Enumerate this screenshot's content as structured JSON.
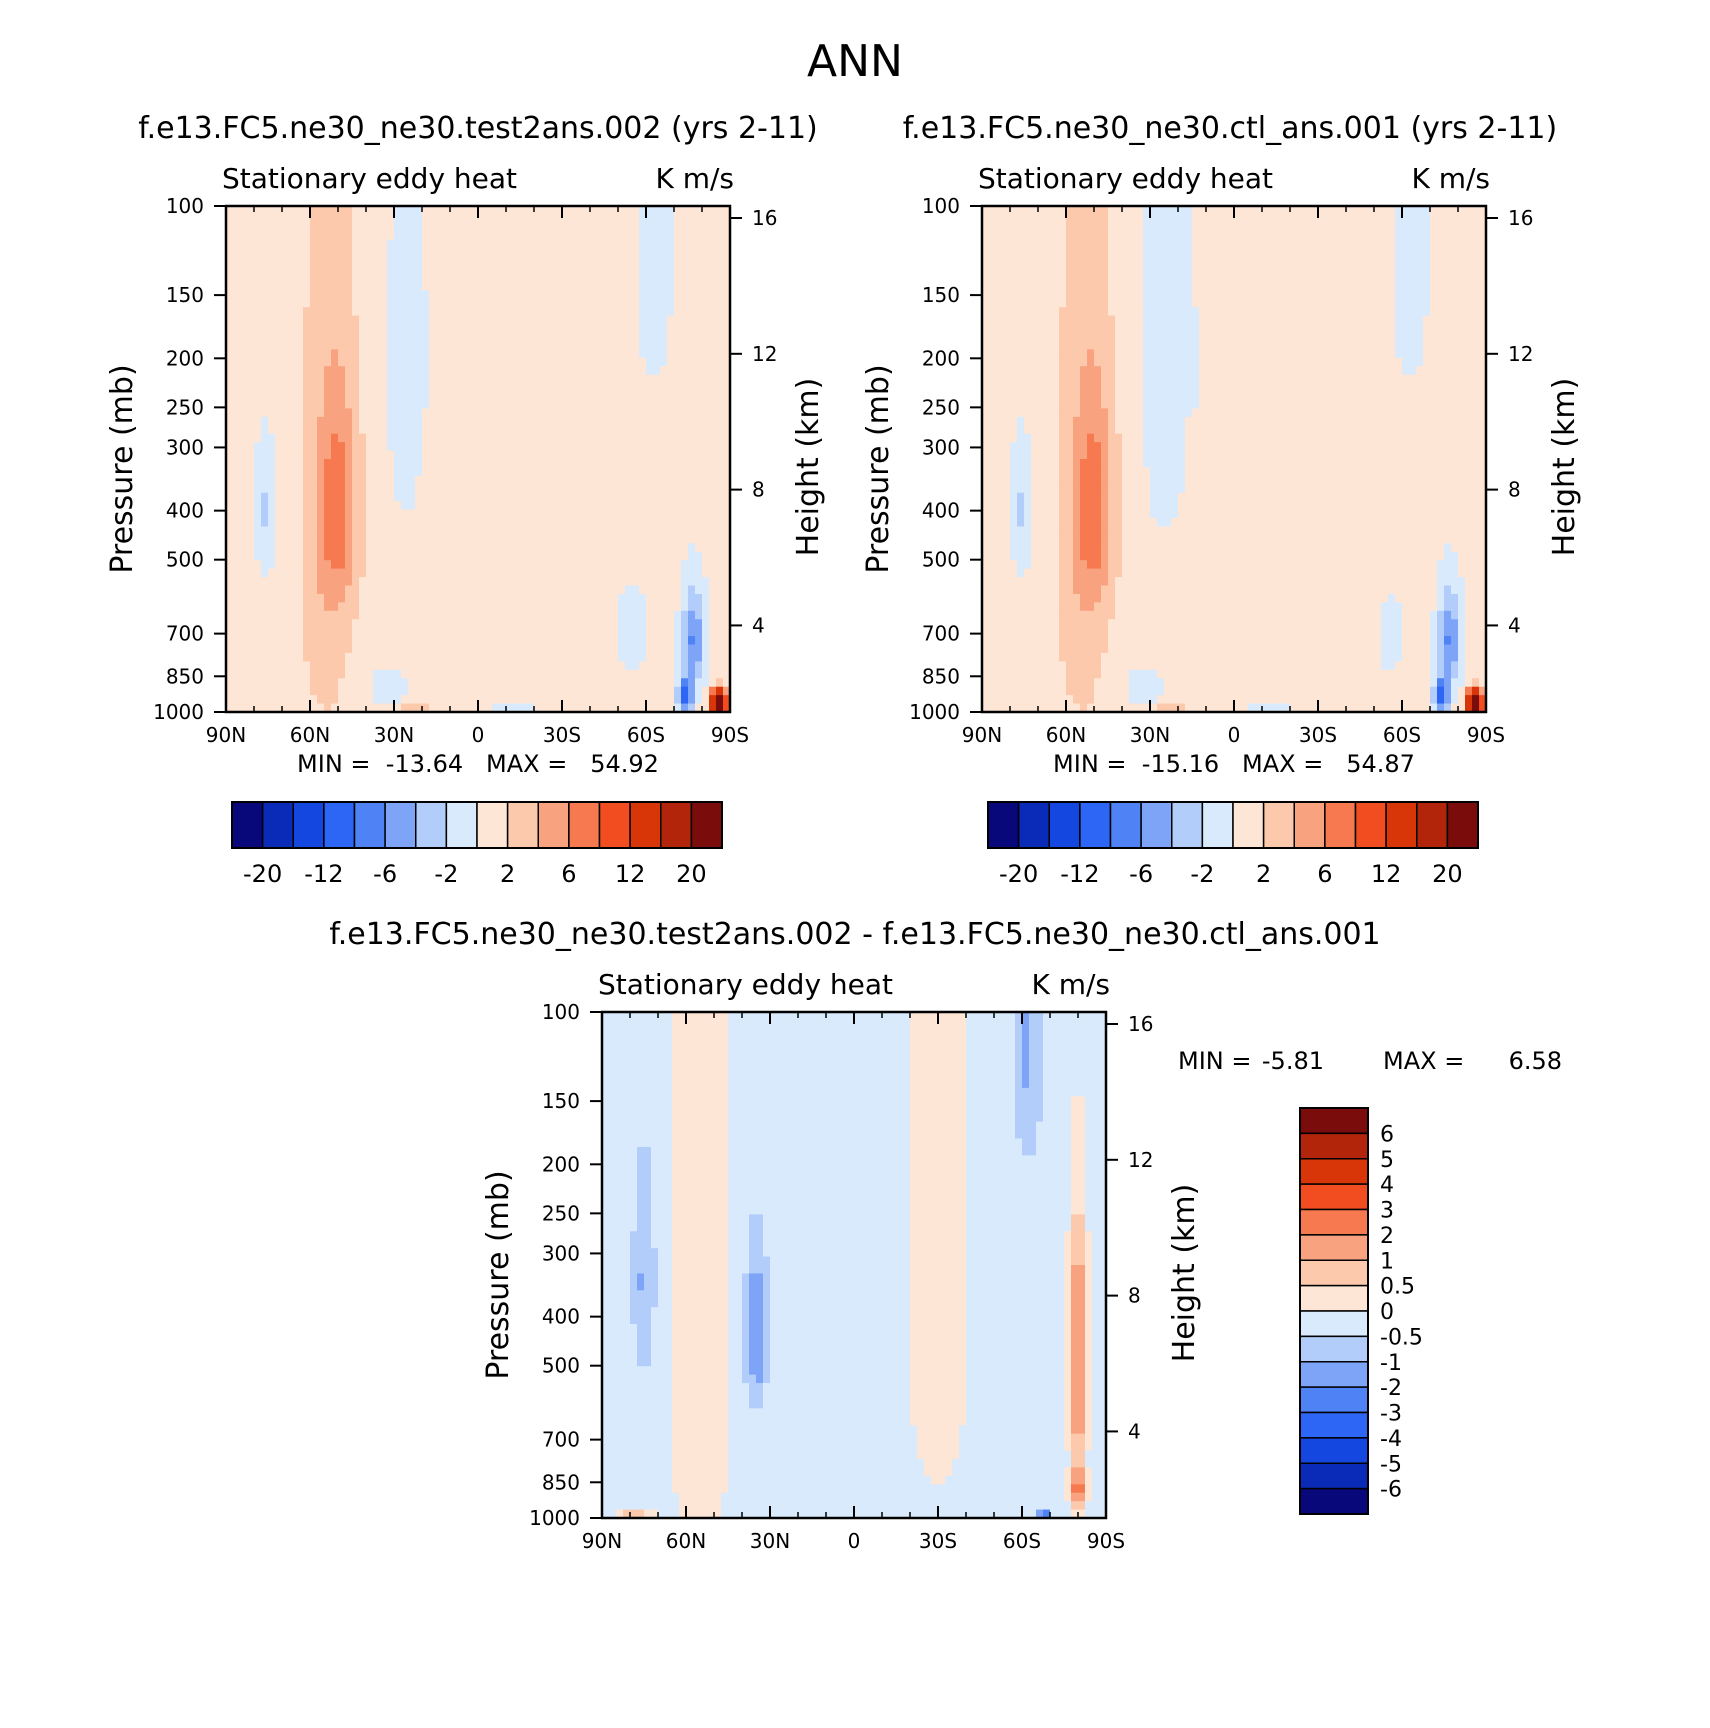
{
  "season": "ANN",
  "chart_data": [
    {
      "type": "heatmap",
      "title": "f.e13.FC5.ne30_ne30.test2ans.002 (yrs 2-11)",
      "subtitle_left": "Stationary eddy heat",
      "subtitle_right": "K m/s",
      "ylabel": "Pressure (mb)",
      "y2label": "Height (km)",
      "xlim": [
        90,
        -90
      ],
      "x_ticks": [
        90,
        60,
        30,
        0,
        -30,
        -60,
        -90
      ],
      "x_tick_labels": [
        "90N",
        "60N",
        "30N",
        "0",
        "30S",
        "60S",
        "90S"
      ],
      "ylim": [
        1000,
        100
      ],
      "y_ticks": [
        100,
        150,
        200,
        250,
        300,
        400,
        500,
        700,
        850,
        1000
      ],
      "y_tick_labels": [
        "100",
        "150",
        "200",
        "250",
        "300",
        "400",
        "500",
        "700",
        "850",
        "1000"
      ],
      "y2_ticks": [
        4,
        8,
        12,
        16
      ],
      "y2_tick_labels": [
        "4",
        "8",
        "12",
        "16"
      ],
      "stats_text": "MIN =  -13.64   MAX =   54.92",
      "min": -13.64,
      "max": 54.92,
      "colorbar": {
        "orientation": "horizontal",
        "levels": [
          -20,
          -16,
          -12,
          -8,
          -6,
          -4,
          -2,
          0,
          2,
          4,
          6,
          8,
          12,
          16,
          20
        ],
        "labels": [
          "-20",
          "-12",
          "-6",
          "-2",
          "2",
          "6",
          "12",
          "20"
        ],
        "colors": [
          "#08087a",
          "#0a2bb8",
          "#1447e0",
          "#2d66f5",
          "#4e82f5",
          "#7ea4f7",
          "#b3cdfa",
          "#d9eafc",
          "#fde6d5",
          "#fcc9ad",
          "#f9a27f",
          "#f7794f",
          "#f14d20",
          "#d83508",
          "#b3250a",
          "#7a0c0c"
        ]
      }
    },
    {
      "type": "heatmap",
      "title": "f.e13.FC5.ne30_ne30.ctl_ans.001 (yrs 2-11)",
      "subtitle_left": "Stationary eddy heat",
      "subtitle_right": "K m/s",
      "ylabel": "Pressure (mb)",
      "y2label": "Height (km)",
      "xlim": [
        90,
        -90
      ],
      "x_ticks": [
        90,
        60,
        30,
        0,
        -30,
        -60,
        -90
      ],
      "x_tick_labels": [
        "90N",
        "60N",
        "30N",
        "0",
        "30S",
        "60S",
        "90S"
      ],
      "ylim": [
        1000,
        100
      ],
      "y_ticks": [
        100,
        150,
        200,
        250,
        300,
        400,
        500,
        700,
        850,
        1000
      ],
      "y_tick_labels": [
        "100",
        "150",
        "200",
        "250",
        "300",
        "400",
        "500",
        "700",
        "850",
        "1000"
      ],
      "y2_ticks": [
        4,
        8,
        12,
        16
      ],
      "y2_tick_labels": [
        "4",
        "8",
        "12",
        "16"
      ],
      "stats_text": "MIN =  -15.16   MAX =   54.87",
      "min": -15.16,
      "max": 54.87,
      "colorbar": {
        "orientation": "horizontal",
        "levels": [
          -20,
          -16,
          -12,
          -8,
          -6,
          -4,
          -2,
          0,
          2,
          4,
          6,
          8,
          12,
          16,
          20
        ],
        "labels": [
          "-20",
          "-12",
          "-6",
          "-2",
          "2",
          "6",
          "12",
          "20"
        ],
        "colors": [
          "#08087a",
          "#0a2bb8",
          "#1447e0",
          "#2d66f5",
          "#4e82f5",
          "#7ea4f7",
          "#b3cdfa",
          "#d9eafc",
          "#fde6d5",
          "#fcc9ad",
          "#f9a27f",
          "#f7794f",
          "#f14d20",
          "#d83508",
          "#b3250a",
          "#7a0c0c"
        ]
      }
    },
    {
      "type": "heatmap",
      "title": "f.e13.FC5.ne30_ne30.test2ans.002 - f.e13.FC5.ne30_ne30.ctl_ans.001",
      "subtitle_left": "Stationary eddy heat",
      "subtitle_right": "K m/s",
      "ylabel": "Pressure (mb)",
      "y2label": "Height (km)",
      "xlim": [
        90,
        -90
      ],
      "x_ticks": [
        90,
        60,
        30,
        0,
        -30,
        -60,
        -90
      ],
      "x_tick_labels": [
        "90N",
        "60N",
        "30N",
        "0",
        "30S",
        "60S",
        "90S"
      ],
      "ylim": [
        1000,
        100
      ],
      "y_ticks": [
        100,
        150,
        200,
        250,
        300,
        400,
        500,
        700,
        850,
        1000
      ],
      "y_tick_labels": [
        "100",
        "150",
        "200",
        "250",
        "300",
        "400",
        "500",
        "700",
        "850",
        "1000"
      ],
      "y2_ticks": [
        4,
        8,
        12,
        16
      ],
      "y2_tick_labels": [
        "4",
        "8",
        "12",
        "16"
      ],
      "stats_label_min": "MIN =",
      "stats_value_min": "-5.81",
      "stats_label_max": "MAX =",
      "stats_value_max": "6.58",
      "min": -5.81,
      "max": 6.58,
      "colorbar": {
        "orientation": "vertical",
        "levels": [
          -6,
          -5,
          -4,
          -3,
          -2,
          -1,
          -0.5,
          0,
          0.5,
          1,
          2,
          3,
          4,
          5,
          6
        ],
        "labels": [
          "6",
          "5",
          "4",
          "3",
          "2",
          "1",
          "0.5",
          "0",
          "-0.5",
          "-1",
          "-2",
          "-3",
          "-4",
          "-5",
          "-6"
        ],
        "colors": [
          "#7a0c0c",
          "#b3250a",
          "#d83508",
          "#f14d20",
          "#f7794f",
          "#f9a27f",
          "#fcc9ad",
          "#fde6d5",
          "#d9eafc",
          "#b3cdfa",
          "#7ea4f7",
          "#4e82f5",
          "#2d66f5",
          "#1447e0",
          "#0a2bb8",
          "#08087a"
        ]
      }
    }
  ]
}
